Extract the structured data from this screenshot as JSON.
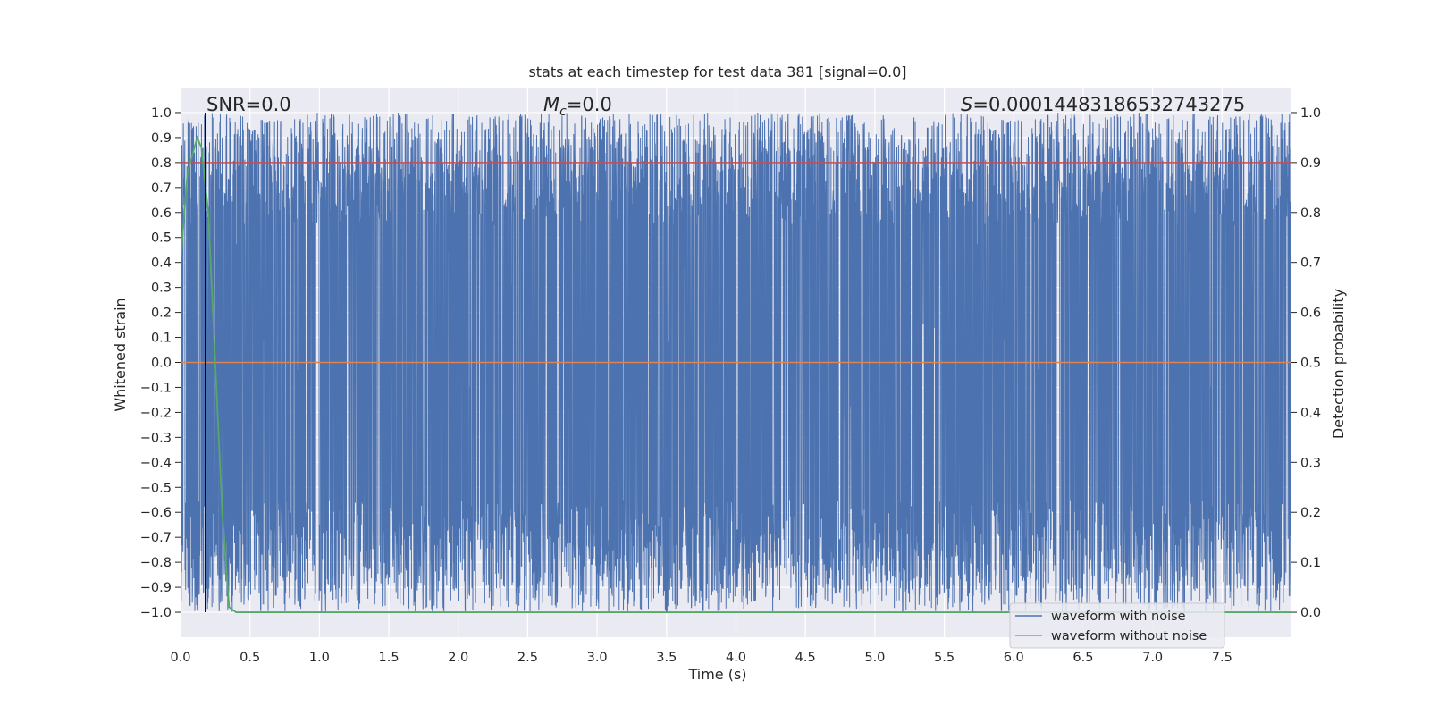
{
  "chart_data": {
    "type": "line",
    "title": "stats at each timestep for test data 381 [signal=0.0]",
    "xlabel": "Time (s)",
    "ylabel_left": "Whitened strain",
    "ylabel_right": "Detection probability",
    "xlim": [
      0,
      8
    ],
    "ylim_left": [
      -1.1,
      1.1
    ],
    "ylim_right": [
      -0.05,
      1.05
    ],
    "x_ticks": [
      0.0,
      0.5,
      1.0,
      1.5,
      2.0,
      2.5,
      3.0,
      3.5,
      4.0,
      4.5,
      5.0,
      5.5,
      6.0,
      6.5,
      7.0,
      7.5
    ],
    "y_ticks_left": [
      -1.0,
      -0.9,
      -0.8,
      -0.7,
      -0.6,
      -0.5,
      -0.4,
      -0.3,
      -0.2,
      -0.1,
      0.0,
      0.1,
      0.2,
      0.3,
      0.4,
      0.5,
      0.6,
      0.7,
      0.8,
      0.9,
      1.0
    ],
    "y_ticks_right": [
      0.0,
      0.1,
      0.2,
      0.3,
      0.4,
      0.5,
      0.6,
      0.7,
      0.8,
      0.9,
      1.0
    ],
    "grid": true,
    "legend_placement": "lower-right",
    "annotations": {
      "snr": "SNR=0.0",
      "mc_symbol": "M",
      "mc_sub": "c",
      "mc_value": "=0.0",
      "s_symbol": "S",
      "s_value": "=0.0001448318653274327​5"
    },
    "series": [
      {
        "name": "waveform with noise",
        "color": "#4c72b0",
        "axis": "left",
        "description_values": "dense noise filling approximately -1.0 to 1.0 across 0 to 8 s",
        "x_range": [
          0,
          8
        ],
        "y_range": [
          -1.0,
          1.0
        ]
      },
      {
        "name": "waveform without noise",
        "color": "#dd8452",
        "axis": "left",
        "x": [
          0,
          8
        ],
        "y": [
          0,
          0
        ]
      },
      {
        "axis": "right",
        "color": "#55a868",
        "x": [
          0.0,
          0.05,
          0.1,
          0.12,
          0.15,
          0.2,
          0.25,
          0.3,
          0.35,
          0.4,
          8.0
        ],
        "y": [
          0.7,
          0.88,
          0.93,
          0.95,
          0.93,
          0.8,
          0.5,
          0.2,
          0.01,
          0.0,
          0.0
        ]
      },
      {
        "axis": "right",
        "color": "#c44e52",
        "x": [
          0,
          8
        ],
        "y": [
          0.9,
          0.9
        ]
      }
    ],
    "vertical_marker_x": 0.18
  }
}
